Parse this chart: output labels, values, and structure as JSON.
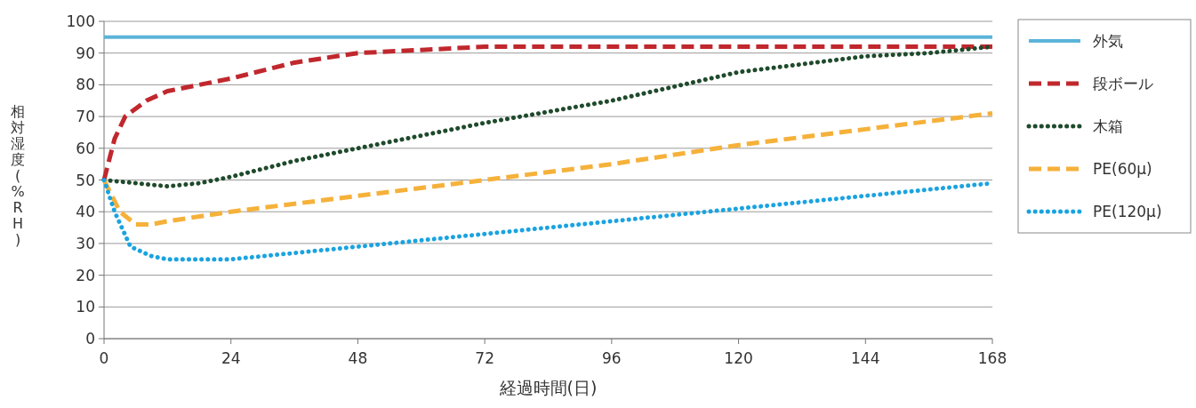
{
  "chart_data": {
    "type": "line",
    "xlabel": "経過時間(日)",
    "ylabel": "相対湿度(%RH)",
    "xlim": [
      0,
      168
    ],
    "xticks": [
      0,
      24,
      48,
      72,
      96,
      120,
      144,
      168
    ],
    "ylim": [
      0,
      100
    ],
    "yticks": [
      0,
      10,
      20,
      30,
      40,
      50,
      60,
      70,
      80,
      90,
      100
    ],
    "grid": "y",
    "legend": "right",
    "marker": "none",
    "series": [
      {
        "name": "外気",
        "color": "#5bb4d9",
        "line_style": "solid",
        "x": [
          0,
          168
        ],
        "values": [
          95,
          95
        ]
      },
      {
        "name": "段ボール",
        "color": "#c0282d",
        "line_style": "dashed",
        "x": [
          0,
          2,
          4,
          8,
          12,
          18,
          24,
          36,
          48,
          60,
          72,
          96,
          120,
          144,
          168
        ],
        "values": [
          50,
          63,
          70,
          75,
          78,
          80,
          82,
          87,
          90,
          91,
          92,
          92,
          92,
          92,
          92
        ]
      },
      {
        "name": "木箱",
        "color": "#1f4a2c",
        "line_style": "dotted",
        "x": [
          0,
          6,
          12,
          18,
          24,
          36,
          48,
          72,
          96,
          120,
          144,
          156,
          168
        ],
        "values": [
          50,
          49,
          48,
          49,
          51,
          56,
          60,
          68,
          75,
          84,
          89,
          90,
          92
        ]
      },
      {
        "name": "PE(60μ)",
        "color": "#f5b13a",
        "line_style": "dashed",
        "x": [
          0,
          3,
          6,
          9,
          12,
          24,
          48,
          72,
          96,
          120,
          144,
          168
        ],
        "values": [
          50,
          40,
          36,
          36,
          37,
          40,
          45,
          50,
          55,
          61,
          66,
          71
        ]
      },
      {
        "name": "PE(120μ)",
        "color": "#1aa3e0",
        "line_style": "dotted",
        "x": [
          0,
          2,
          5,
          9,
          12,
          18,
          24,
          36,
          48,
          72,
          96,
          120,
          144,
          168
        ],
        "values": [
          50,
          40,
          29,
          26,
          25,
          25,
          25,
          27,
          29,
          33,
          37,
          41,
          45,
          49
        ]
      }
    ]
  }
}
